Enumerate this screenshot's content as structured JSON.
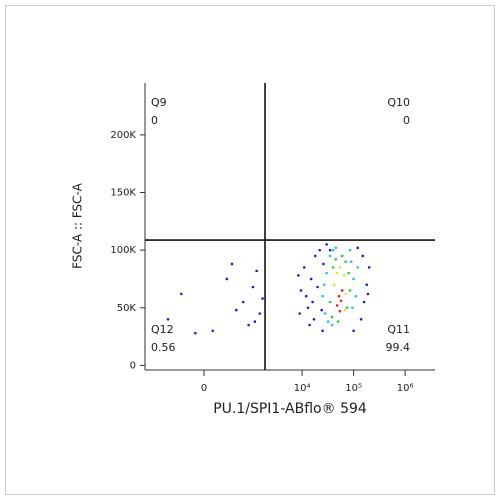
{
  "chart_data": {
    "type": "scatter",
    "x_label": "PU.1/SPI1-ABflo® 594",
    "y_label": "FSC-A :: FSC-A",
    "xscale": "biex",
    "x_linear_width": 250,
    "xlim": [
      -1740,
      3800000
    ],
    "ylim": [
      -4000,
      245000
    ],
    "xticks": [
      0,
      {
        "value": 10000,
        "label": "10⁴"
      },
      {
        "value": 100000,
        "label": "10⁵"
      },
      {
        "value": 1000000,
        "label": "10⁶"
      }
    ],
    "yticks": [
      0,
      {
        "value": 50000,
        "label": "50K"
      },
      {
        "value": 100000,
        "label": "100K"
      },
      {
        "value": 150000,
        "label": "150K"
      },
      {
        "value": 200000,
        "label": "200K"
      }
    ],
    "x_gate": 1900,
    "y_gate": 108700,
    "quadrants": [
      {
        "name": "Q9",
        "percent": 0
      },
      {
        "name": "Q10",
        "percent": 0
      },
      {
        "name": "Q12",
        "percent": 0.56
      },
      {
        "name": "Q11",
        "percent": 99.4
      }
    ],
    "series": [
      {
        "color": "#1c1cd8",
        "x": [
          -600,
          -300,
          100,
          300,
          500,
          700,
          900,
          1100,
          1300,
          1500,
          1700,
          -100,
          400,
          1200,
          9000,
          12000,
          15000,
          11000,
          18000,
          22000,
          14000,
          25000,
          30000,
          160000,
          180000,
          200000,
          150000,
          120000,
          9500,
          13000,
          17000,
          26000,
          35000,
          100000,
          140000,
          20000,
          16000,
          8500,
          24000,
          190000
        ],
        "y": [
          40000,
          62000,
          30000,
          75000,
          48000,
          55000,
          35000,
          68000,
          82000,
          45000,
          58000,
          28000,
          88000,
          38000,
          45000,
          60000,
          75000,
          85000,
          95000,
          100000,
          35000,
          30000,
          105000,
          55000,
          70000,
          85000,
          95000,
          102000,
          65000,
          50000,
          40000,
          88000,
          100000,
          30000,
          40000,
          68000,
          55000,
          78000,
          48000,
          62000
        ]
      },
      {
        "color": "#19c8e6",
        "x": [
          25000,
          30000,
          35000,
          40000,
          90000,
          100000,
          110000,
          28000,
          32000,
          95000,
          85000,
          45000,
          38000,
          120000,
          27000
        ],
        "y": [
          60000,
          80000,
          95000,
          100000,
          90000,
          75000,
          60000,
          45000,
          38000,
          50000,
          100000,
          102000,
          35000,
          85000,
          70000
        ]
      },
      {
        "color": "#22d13b",
        "x": [
          35000,
          40000,
          45000,
          70000,
          80000,
          85000,
          38000,
          75000,
          50000,
          60000
        ],
        "y": [
          55000,
          85000,
          92000,
          90000,
          80000,
          65000,
          42000,
          50000,
          38000,
          95000
        ]
      },
      {
        "color": "#f0e020",
        "x": [
          42000,
          48000,
          65000,
          70000,
          55000,
          68000
        ],
        "y": [
          70000,
          80000,
          78000,
          62000,
          85000,
          48000
        ]
      },
      {
        "color": "#e8231a",
        "x": [
          48000,
          52000,
          57000,
          60000,
          54000
        ],
        "y": [
          52000,
          60000,
          56000,
          65000,
          47000
        ]
      }
    ]
  }
}
